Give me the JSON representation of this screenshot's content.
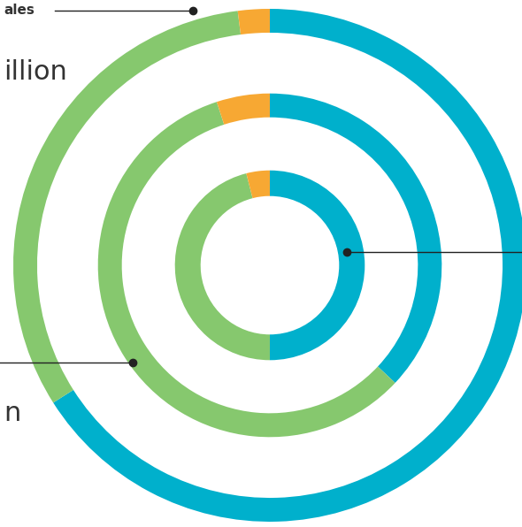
{
  "chart_data": {
    "type": "donut",
    "colors": [
      "#00b0cc",
      "#86c86e",
      "#f7a833"
    ],
    "series": [
      {
        "values": [
          66,
          32,
          2
        ]
      },
      {
        "values": [
          37,
          58,
          5
        ]
      },
      {
        "values": [
          50,
          46,
          4
        ]
      }
    ],
    "annotations": [
      "ales",
      "illion",
      "n"
    ]
  }
}
